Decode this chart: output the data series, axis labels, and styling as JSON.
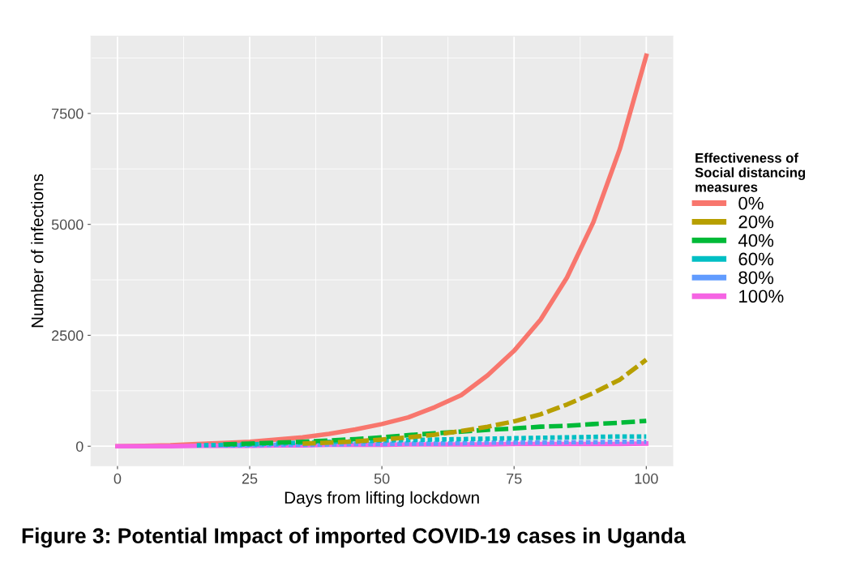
{
  "chart_data": {
    "type": "line",
    "xlabel": "Days from lifting lockdown",
    "ylabel": "Number of infections",
    "legend_title": "Effectiveness of\nSocial distancing\nmeasures",
    "x": [
      0,
      5,
      10,
      15,
      20,
      25,
      30,
      35,
      40,
      45,
      50,
      55,
      60,
      65,
      70,
      75,
      80,
      85,
      90,
      95,
      100
    ],
    "series": [
      {
        "name": "0%",
        "color": "#f8766d",
        "line_style": "solid",
        "values": [
          0,
          10,
          20,
          50,
          70,
          100,
          150,
          200,
          280,
          380,
          500,
          650,
          880,
          1150,
          1600,
          2150,
          2850,
          3800,
          5050,
          6700,
          8800
        ]
      },
      {
        "name": "20%",
        "color": "#b79f00",
        "line_style": "dashed",
        "values": [
          null,
          null,
          null,
          null,
          null,
          null,
          null,
          60,
          80,
          110,
          150,
          200,
          260,
          340,
          440,
          560,
          720,
          940,
          1200,
          1500,
          1950
        ]
      },
      {
        "name": "40%",
        "color": "#00ba38",
        "line_style": "dashed",
        "values": [
          null,
          null,
          null,
          null,
          40,
          60,
          80,
          100,
          130,
          160,
          200,
          250,
          290,
          330,
          370,
          400,
          440,
          460,
          500,
          530,
          570
        ]
      },
      {
        "name": "60%",
        "color": "#00bfc4",
        "line_style": "dotted",
        "values": [
          null,
          null,
          null,
          20,
          30,
          40,
          60,
          80,
          100,
          110,
          130,
          140,
          150,
          160,
          170,
          180,
          190,
          200,
          210,
          220,
          220
        ]
      },
      {
        "name": "80%",
        "color": "#619cff",
        "line_style": "dotted",
        "values": [
          null,
          null,
          null,
          null,
          20,
          20,
          30,
          30,
          40,
          50,
          50,
          60,
          60,
          70,
          80,
          80,
          80,
          90,
          90,
          100,
          100
        ]
      },
      {
        "name": "100%",
        "color": "#f564e3",
        "line_style": "solid",
        "values": [
          0,
          0,
          0,
          10,
          10,
          10,
          20,
          20,
          30,
          30,
          30,
          40,
          40,
          40,
          40,
          50,
          50,
          50,
          50,
          50,
          60
        ]
      }
    ],
    "xlim": [
      -5,
      105
    ],
    "ylim": [
      -440,
      9240
    ],
    "xticks": [
      0,
      25,
      50,
      75,
      100
    ],
    "yticks": [
      0,
      2500,
      5000,
      7500
    ],
    "grid": true,
    "legend": "right",
    "marker": "none",
    "annotations": [
      "Figure 3: Potential Impact of imported COVID-19 cases in Uganda"
    ]
  }
}
